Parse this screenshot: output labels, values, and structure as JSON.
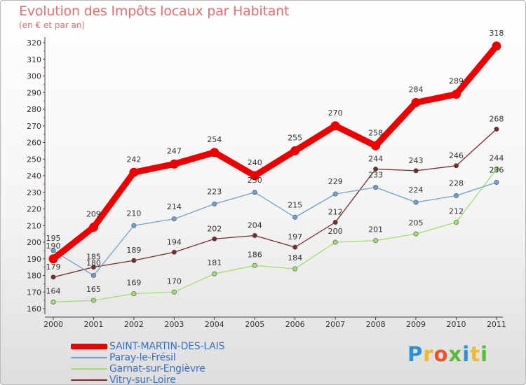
{
  "title": "Evolution des Impôts locaux par Habitant",
  "subtitle": "(en € et par an)",
  "logo": {
    "text": "Proxiti",
    "letters": [
      {
        "ch": "P",
        "color": "#2f8fd8"
      },
      {
        "ch": "r",
        "color": "#f0b82e"
      },
      {
        "ch": "o",
        "color": "#e8542f"
      },
      {
        "ch": "x",
        "color": "#5cb83a"
      },
      {
        "ch": "i",
        "color": "#2f8fd8"
      },
      {
        "ch": "t",
        "color": "#f0b82e"
      },
      {
        "ch": "i",
        "color": "#5cb83a"
      }
    ]
  },
  "chart_data": {
    "type": "line",
    "title": "Evolution des Impôts locaux par Habitant",
    "subtitle": "(en € et par an)",
    "xlabel": "",
    "ylabel": "",
    "ylim": [
      160,
      320
    ],
    "yticks": [
      160,
      170,
      180,
      190,
      200,
      210,
      220,
      230,
      240,
      250,
      260,
      270,
      280,
      290,
      300,
      310,
      320
    ],
    "grid": false,
    "legend_position": "bottom-left",
    "categories": [
      "2000",
      "2001",
      "2002",
      "2003",
      "2004",
      "2005",
      "2006",
      "2007",
      "2008",
      "2009",
      "2010",
      "2011"
    ],
    "series": [
      {
        "name": "SAINT-MARTIN-DES-LAIS",
        "color": "#ee0000",
        "values": [
          190,
          209,
          242,
          247,
          254,
          240,
          255,
          270,
          258,
          284,
          289,
          318
        ]
      },
      {
        "name": "Paray-le-Frésil",
        "color": "#6f9fd0",
        "values": [
          195,
          180,
          210,
          214,
          223,
          230,
          215,
          229,
          233,
          224,
          228,
          236
        ]
      },
      {
        "name": "Garnat-sur-Engièvre",
        "color": "#9ee06a",
        "values": [
          164,
          165,
          169,
          170,
          181,
          186,
          184,
          200,
          201,
          205,
          212,
          244
        ]
      },
      {
        "name": "Vitry-sur-Loire",
        "color": "#7a2a2a",
        "values": [
          179,
          185,
          189,
          194,
          202,
          204,
          197,
          212,
          244,
          243,
          246,
          268
        ]
      }
    ],
    "data_labels": {
      "SAINT-MARTIN-DES-LAIS": [
        "190",
        "209",
        "242",
        "247",
        "254",
        "240",
        "255",
        "270",
        "258",
        "284",
        "289",
        "318"
      ],
      "Paray-le-Frésil": [
        "195",
        "180",
        "210",
        "214",
        "223",
        "230",
        "215",
        "229",
        "233",
        "224",
        "228",
        "236"
      ],
      "Garnat-sur-Engièvre": [
        "164",
        "165",
        "169",
        "170",
        "181",
        "186",
        "184",
        "200",
        "201",
        "205",
        "212",
        "244"
      ],
      "Vitry-sur-Loire": [
        "179",
        "185",
        "189",
        "194",
        "202",
        "204",
        "197",
        "212",
        "244",
        "243",
        "246",
        "268"
      ]
    }
  }
}
